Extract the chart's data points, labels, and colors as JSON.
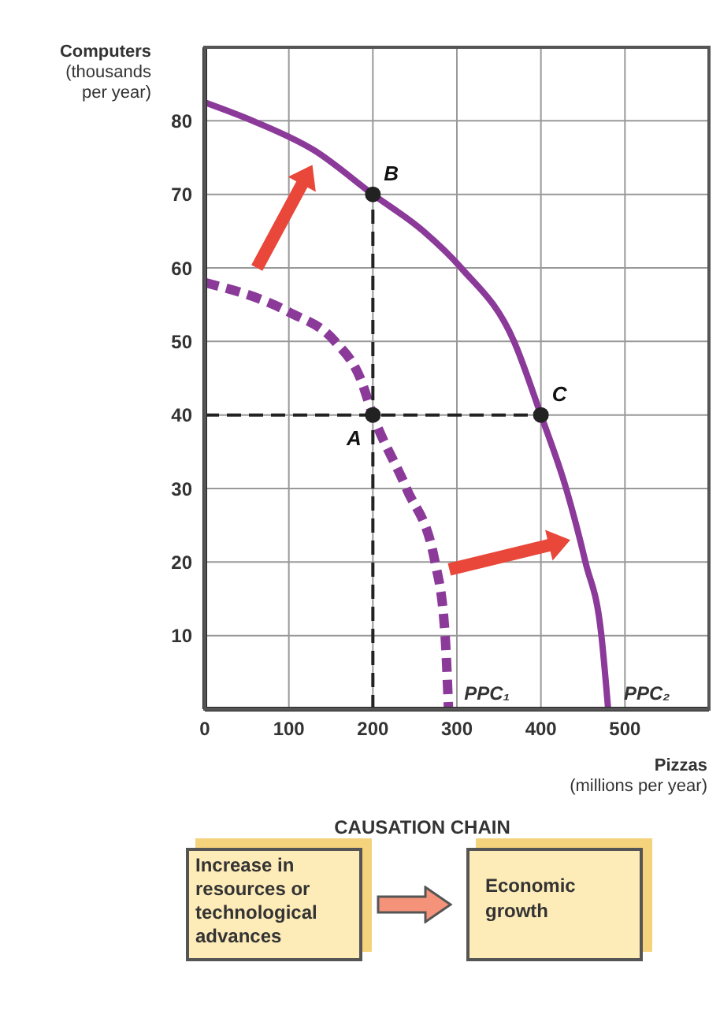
{
  "chart_data": {
    "type": "line",
    "xlabel": "Pizzas (millions per year)",
    "ylabel": "Computers (thousands per year)",
    "xlim": [
      0,
      600
    ],
    "xticks": [
      0,
      100,
      200,
      300,
      400,
      500
    ],
    "ylim": [
      0,
      90
    ],
    "yticks": [
      10,
      20,
      30,
      40,
      50,
      60,
      70,
      80
    ],
    "grid": true,
    "series": [
      {
        "name": "PPC₁",
        "color": "#8b3a9a",
        "line_style": "dashed",
        "marker": "none",
        "x": [
          0,
          100,
          155,
          185,
          200,
          240,
          274,
          286,
          290
        ],
        "values": [
          58,
          54,
          50,
          45,
          40,
          30,
          20,
          10,
          0
        ]
      },
      {
        "name": "PPC₂",
        "color": "#8b3a9a",
        "line_style": "solid",
        "marker": "none",
        "x": [
          0,
          57,
          130,
          200,
          260,
          305,
          368,
          400,
          430,
          453,
          472,
          480
        ],
        "values": [
          82.5,
          80,
          76,
          70,
          65,
          60,
          50,
          40,
          30,
          20,
          10,
          0
        ]
      },
      {
        "type": "line",
        "color": "#222222",
        "line_style": "dashed",
        "marker": "none",
        "x": [
          200,
          200
        ],
        "values": [
          0,
          70
        ]
      },
      {
        "type": "line",
        "color": "#222222",
        "line_style": "dashed",
        "marker": "none",
        "x": [
          0,
          400
        ],
        "values": [
          40,
          40
        ]
      },
      {
        "type": "scatter",
        "color": "#222222",
        "marker": "circle",
        "x": [
          200,
          200,
          400
        ],
        "values": [
          40,
          70,
          40
        ]
      }
    ],
    "annotations": [
      "A",
      "B",
      "C",
      "CAUSATION CHAIN",
      "Increase in resources or technological advances",
      "Economic growth"
    ]
  }
}
